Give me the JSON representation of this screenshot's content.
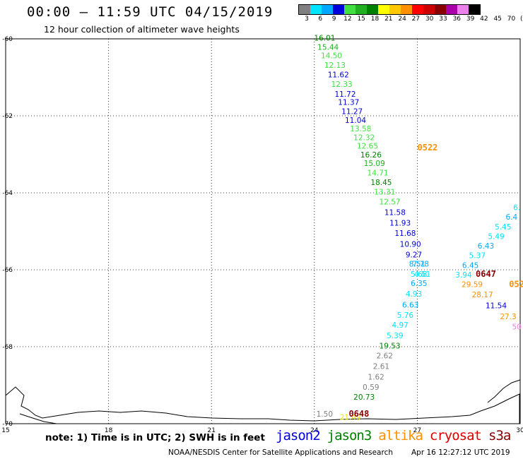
{
  "title": "00:00 – 11:59 UTC 04/15/2019",
  "subtitle": "12 hour collection of altimeter wave heights",
  "legend": {
    "labels": [
      "3",
      "6",
      "9",
      "12",
      "15",
      "18",
      "21",
      "24",
      "27",
      "30",
      "33",
      "36",
      "39",
      "42",
      "45",
      "70",
      "(ft)"
    ],
    "colors": [
      "#808080",
      "#00e5ff",
      "#00a8ff",
      "#0000dd",
      "#40e040",
      "#20b020",
      "#008000",
      "#ffff00",
      "#ffc800",
      "#ff9000",
      "#ff0000",
      "#cc0000",
      "#880000",
      "#aa00aa",
      "#ee80ee",
      "#000000"
    ]
  },
  "note": "note: 1) Time is in UTC; 2) SWH is in feet",
  "satellites": [
    {
      "name": "jason2",
      "color": "#0000dd"
    },
    {
      "name": "jason3",
      "color": "#008000"
    },
    {
      "name": "altika",
      "color": "#ff9000"
    },
    {
      "name": "cryosat",
      "color": "#dd0000"
    },
    {
      "name": "s3a",
      "color": "#880000"
    }
  ],
  "credit": "NOAA/NESDIS Center for Satellite Applications and Research",
  "timestamp": "Apr 16 12:27:12 UTC 2019",
  "chart_data": {
    "type": "scatter",
    "xlim": [
      15,
      30
    ],
    "ylim": [
      -70,
      -60
    ],
    "x_ticks": [
      "15",
      "18",
      "21",
      "24",
      "27",
      "30"
    ],
    "y_ticks": [
      "-60",
      "-62",
      "-64",
      "-66",
      "-68",
      "-70"
    ],
    "grid": true,
    "points": [
      {
        "lon": 24.3,
        "lat": -60.05,
        "label": "16.01",
        "color": "#008000"
      },
      {
        "lon": 24.4,
        "lat": -60.28,
        "label": "15.44",
        "color": "#20b020"
      },
      {
        "lon": 24.5,
        "lat": -60.5,
        "label": "14.50",
        "color": "#40e040"
      },
      {
        "lon": 24.6,
        "lat": -60.75,
        "label": "12.13",
        "color": "#40e040"
      },
      {
        "lon": 24.7,
        "lat": -61.0,
        "label": "11.62",
        "color": "#0000dd"
      },
      {
        "lon": 24.8,
        "lat": -61.25,
        "label": "12.33",
        "color": "#40e040"
      },
      {
        "lon": 24.9,
        "lat": -61.5,
        "label": "11.72",
        "color": "#0000dd"
      },
      {
        "lon": 25.0,
        "lat": -61.72,
        "label": "11.37",
        "color": "#0000dd"
      },
      {
        "lon": 25.1,
        "lat": -61.95,
        "label": "11.27",
        "color": "#0000dd"
      },
      {
        "lon": 25.2,
        "lat": -62.18,
        "label": "11.04",
        "color": "#0000dd"
      },
      {
        "lon": 25.35,
        "lat": -62.4,
        "label": "13.58",
        "color": "#40e040"
      },
      {
        "lon": 25.45,
        "lat": -62.63,
        "label": "12.32",
        "color": "#40e040"
      },
      {
        "lon": 25.55,
        "lat": -62.85,
        "label": "12.65",
        "color": "#40e040"
      },
      {
        "lon": 25.65,
        "lat": -63.08,
        "label": "16.26",
        "color": "#008000"
      },
      {
        "lon": 25.75,
        "lat": -63.3,
        "label": "15.09",
        "color": "#20b020"
      },
      {
        "lon": 25.85,
        "lat": -63.55,
        "label": "14.71",
        "color": "#40e040"
      },
      {
        "lon": 25.95,
        "lat": -63.8,
        "label": "18.45",
        "color": "#008000"
      },
      {
        "lon": 26.05,
        "lat": -64.05,
        "label": "13.31",
        "color": "#40e040"
      },
      {
        "lon": 26.2,
        "lat": -64.3,
        "label": "12.57",
        "color": "#40e040"
      },
      {
        "lon": 26.35,
        "lat": -64.58,
        "label": "11.58",
        "color": "#0000dd"
      },
      {
        "lon": 26.5,
        "lat": -64.85,
        "label": "11.93",
        "color": "#0000dd"
      },
      {
        "lon": 26.65,
        "lat": -65.12,
        "label": "11.68",
        "color": "#0000dd"
      },
      {
        "lon": 26.8,
        "lat": -65.4,
        "label": "10.90",
        "color": "#0000dd"
      },
      {
        "lon": 26.9,
        "lat": -65.68,
        "label": "9.27",
        "color": "#0000dd"
      },
      {
        "lon": 27.0,
        "lat": -65.92,
        "label": "8.51",
        "color": "#00a8ff"
      },
      {
        "lon": 27.1,
        "lat": -65.92,
        "label": "7.78",
        "color": "#00a8ff"
      },
      {
        "lon": 27.05,
        "lat": -66.18,
        "label": "5.68",
        "color": "#00e5ff"
      },
      {
        "lon": 27.15,
        "lat": -66.18,
        "label": "4.51",
        "color": "#00e5ff"
      },
      {
        "lon": 27.05,
        "lat": -66.42,
        "label": "6.35",
        "color": "#00a8ff"
      },
      {
        "lon": 26.9,
        "lat": -66.7,
        "label": "4.93",
        "color": "#00e5ff"
      },
      {
        "lon": 26.8,
        "lat": -66.98,
        "label": "6.63",
        "color": "#00a8ff"
      },
      {
        "lon": 26.65,
        "lat": -67.25,
        "label": "5.76",
        "color": "#00e5ff"
      },
      {
        "lon": 26.5,
        "lat": -67.5,
        "label": "4.97",
        "color": "#00e5ff"
      },
      {
        "lon": 26.35,
        "lat": -67.78,
        "label": "5.39",
        "color": "#00e5ff"
      },
      {
        "lon": 26.2,
        "lat": -68.05,
        "label": "19.53",
        "color": "#008000"
      },
      {
        "lon": 26.05,
        "lat": -68.3,
        "label": "2.62",
        "color": "#808080"
      },
      {
        "lon": 25.95,
        "lat": -68.58,
        "label": "2.61",
        "color": "#808080"
      },
      {
        "lon": 25.8,
        "lat": -68.85,
        "label": "1.62",
        "color": "#808080"
      },
      {
        "lon": 25.65,
        "lat": -69.12,
        "label": "0.59",
        "color": "#808080"
      },
      {
        "lon": 25.45,
        "lat": -69.38,
        "label": "20.73",
        "color": "#008000"
      },
      {
        "lon": 25.05,
        "lat": -69.9,
        "label": "21.49",
        "color": "#e8e800"
      },
      {
        "lon": 24.3,
        "lat": -70.75,
        "label": "1.50",
        "color": "#808080"
      },
      {
        "lon": 29.9,
        "lat": -64.45,
        "label": "6.",
        "color": "#00e5ff"
      },
      {
        "lon": 29.75,
        "lat": -64.7,
        "label": "6.4",
        "color": "#00a8ff"
      },
      {
        "lon": 29.5,
        "lat": -64.95,
        "label": "5.45",
        "color": "#00e5ff"
      },
      {
        "lon": 29.3,
        "lat": -65.2,
        "label": "5.49",
        "color": "#00e5ff"
      },
      {
        "lon": 29.0,
        "lat": -65.45,
        "label": "6.43",
        "color": "#00a8ff"
      },
      {
        "lon": 28.75,
        "lat": -65.7,
        "label": "5.37",
        "color": "#00e5ff"
      },
      {
        "lon": 28.55,
        "lat": -65.95,
        "label": "6.45",
        "color": "#00a8ff"
      },
      {
        "lon": 28.35,
        "lat": -66.2,
        "label": "3.94",
        "color": "#00e5ff"
      },
      {
        "lon": 28.6,
        "lat": -66.45,
        "label": "29.59",
        "color": "#ff9000"
      },
      {
        "lon": 28.9,
        "lat": -66.72,
        "label": "28.17",
        "color": "#ff9000"
      },
      {
        "lon": 29.3,
        "lat": -67.0,
        "label": "11.54",
        "color": "#0000dd"
      },
      {
        "lon": 29.65,
        "lat": -67.28,
        "label": "27.3",
        "color": "#ff9000"
      },
      {
        "lon": 29.9,
        "lat": -67.55,
        "label": "50",
        "color": "#ee80ee"
      }
    ],
    "pass_labels": [
      {
        "lon": 27.3,
        "lat": -62.9,
        "label": "0522",
        "color": "#ff9000"
      },
      {
        "lon": 29.0,
        "lat": -66.18,
        "label": "0647",
        "color": "#880000"
      },
      {
        "lon": 29.9,
        "lat": -66.45,
        "label": "052",
        "color": "#ff9000"
      },
      {
        "lon": 25.3,
        "lat": -70.75,
        "label": "0648",
        "color": "#880000"
      }
    ]
  }
}
